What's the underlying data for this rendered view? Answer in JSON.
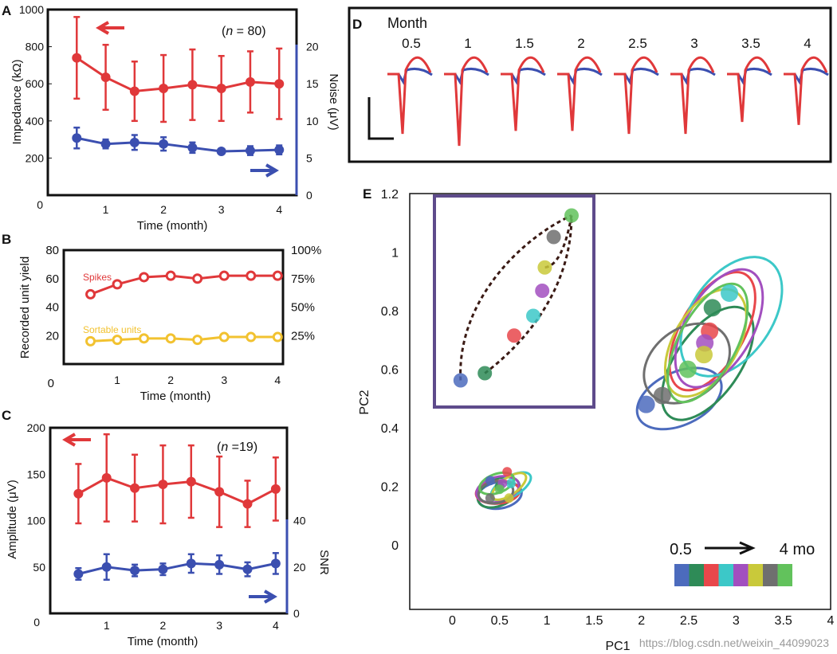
{
  "colors": {
    "red": "#e0383a",
    "blue": "#3b4fb0",
    "yellow": "#f2c230",
    "inset_border": "#5e4b8b",
    "arrow_dark": "#3a1a14",
    "palette": [
      "#4c6bbd",
      "#2e8b57",
      "#e8474b",
      "#3cc8c8",
      "#a24fbf",
      "#c9c93a",
      "#6f6f6f",
      "#62c25c"
    ]
  },
  "watermark": "https://blog.csdn.net/weixin_44099023",
  "chart_data": [
    {
      "panel": "A",
      "type": "line",
      "n_label": [
        "(",
        "n",
        " = 80)"
      ],
      "xlabel": "Time (month)",
      "ylabel": "Impedance (kΩ)",
      "y2label": "Noise (μV)",
      "xlim": [
        0,
        4.3
      ],
      "ylim": [
        0,
        1000
      ],
      "y2lim": [
        0,
        25
      ],
      "xticks": [
        0,
        1,
        2,
        3,
        4
      ],
      "yticks": [
        200,
        400,
        600,
        800,
        1000
      ],
      "y2ticks": [
        0,
        5,
        10,
        15,
        20
      ],
      "x": [
        0.5,
        1,
        1.5,
        2,
        2.5,
        3,
        3.5,
        4
      ],
      "series": [
        {
          "name": "Impedance",
          "axis": "left",
          "color": "red",
          "values": [
            740,
            635,
            560,
            575,
            595,
            575,
            610,
            600
          ],
          "err": [
            220,
            175,
            160,
            180,
            190,
            175,
            165,
            190
          ]
        },
        {
          "name": "Noise",
          "axis": "right",
          "color": "blue",
          "values": [
            7.7,
            6.9,
            7.1,
            6.9,
            6.4,
            5.9,
            6.0,
            6.1
          ],
          "err": [
            1.4,
            0.6,
            1.0,
            0.9,
            0.7,
            0.3,
            0.6,
            0.6
          ]
        }
      ]
    },
    {
      "panel": "B",
      "type": "line",
      "xlabel": "Time (month)",
      "ylabel": "Recorded unit yield",
      "xlim": [
        0,
        4.1
      ],
      "ylim": [
        0,
        80
      ],
      "xticks": [
        0,
        1,
        2,
        3,
        4
      ],
      "yticks": [
        20,
        40,
        60,
        80
      ],
      "y2ticks": [
        "25%",
        "50%",
        "75%",
        "100%"
      ],
      "x": [
        0.5,
        1,
        1.5,
        2,
        2.5,
        3,
        3.5,
        4
      ],
      "series": [
        {
          "name": "Spikes",
          "color": "red",
          "values": [
            49,
            56,
            61,
            62,
            60,
            62,
            62,
            62
          ]
        },
        {
          "name": "Sortable units",
          "color": "yellow",
          "values": [
            16,
            17,
            18,
            18,
            17,
            19,
            19,
            19
          ]
        }
      ]
    },
    {
      "panel": "C",
      "type": "line",
      "n_label": [
        "(",
        "n",
        " =19)"
      ],
      "xlabel": "Time (month)",
      "ylabel": "Amplitude (μV)",
      "y2label": "SNR",
      "xlim": [
        0,
        4.2
      ],
      "ylim": [
        0,
        200
      ],
      "y2lim": [
        0,
        80
      ],
      "xticks": [
        0,
        1,
        2,
        3,
        4
      ],
      "yticks": [
        0,
        50,
        100,
        150,
        200
      ],
      "y2ticks": [
        0,
        20,
        40
      ],
      "x": [
        0.5,
        1,
        1.5,
        2,
        2.5,
        3,
        3.5,
        4
      ],
      "series": [
        {
          "name": "Amplitude",
          "axis": "left",
          "color": "red",
          "values": [
            129,
            146,
            135,
            139,
            142,
            131,
            118,
            134
          ],
          "err": [
            32,
            47,
            36,
            42,
            39,
            38,
            25,
            34
          ]
        },
        {
          "name": "SNR",
          "axis": "right",
          "color": "blue",
          "values": [
            17,
            20,
            18.5,
            19,
            21.5,
            21,
            19,
            21.5
          ],
          "err": [
            2.5,
            5.5,
            2.5,
            2.5,
            4,
            4,
            3,
            4.5
          ]
        }
      ]
    },
    {
      "panel": "D",
      "type": "line",
      "header": "Month",
      "months": [
        "0.5",
        "1",
        "1.5",
        "2",
        "2.5",
        "3",
        "3.5",
        "4"
      ],
      "troughs": [
        -1.0,
        -1.2,
        -0.95,
        -0.95,
        -1.0,
        -1.0,
        -0.8,
        -0.85
      ]
    },
    {
      "panel": "E",
      "type": "scatter",
      "xlabel": "PC1",
      "ylabel": "PC2",
      "xlim": [
        -0.45,
        4
      ],
      "ylim": [
        -0.22,
        1.2
      ],
      "xticks": [
        0,
        0.5,
        1,
        1.5,
        2,
        2.5,
        3,
        3.5,
        4
      ],
      "xtick_labels": [
        "0",
        "0.5",
        "1",
        "1.5",
        "2",
        "2.5",
        "3",
        "3.5",
        "4"
      ],
      "yticks": [
        0,
        0.2,
        0.4,
        0.6,
        0.8,
        1,
        1.2
      ],
      "ytick_labels": [
        "0",
        "0.2",
        "0.4",
        "0.6",
        "0.8",
        "1",
        "1.2"
      ],
      "legend": {
        "start": "0.5",
        "end": "4 mo"
      },
      "cluster1_points": [
        [
          0.4,
          0.22
        ],
        [
          0.5,
          0.2
        ],
        [
          0.58,
          0.25
        ],
        [
          0.62,
          0.21
        ],
        [
          0.53,
          0.21
        ],
        [
          0.6,
          0.16
        ],
        [
          0.4,
          0.16
        ],
        [
          0.5,
          0.19
        ]
      ],
      "cluster1_ellipses": [
        [
          0.5,
          0.17,
          0.47,
          0.28,
          10
        ],
        [
          0.49,
          0.18,
          0.47,
          0.28,
          25
        ],
        [
          0.48,
          0.18,
          0.46,
          0.24,
          5
        ],
        [
          0.62,
          0.2,
          0.47,
          0.21,
          30
        ],
        [
          0.48,
          0.19,
          0.46,
          0.26,
          15
        ],
        [
          0.6,
          0.2,
          0.42,
          0.18,
          35
        ],
        [
          0.46,
          0.18,
          0.37,
          0.23,
          10
        ],
        [
          0.47,
          0.21,
          0.38,
          0.2,
          20
        ]
      ],
      "cluster2_points": [
        [
          2.05,
          0.48
        ],
        [
          2.75,
          0.81
        ],
        [
          2.72,
          0.73
        ],
        [
          2.93,
          0.86
        ],
        [
          2.67,
          0.69
        ],
        [
          2.66,
          0.65
        ],
        [
          2.22,
          0.51
        ],
        [
          2.49,
          0.6
        ]
      ],
      "cluster2_ellipses": [
        [
          2.4,
          0.5,
          0.95,
          0.56,
          25
        ],
        [
          2.7,
          0.62,
          1.38,
          0.68,
          55
        ],
        [
          2.75,
          0.73,
          1.39,
          0.67,
          60
        ],
        [
          2.95,
          0.78,
          1.42,
          0.85,
          55
        ],
        [
          2.82,
          0.74,
          1.38,
          0.71,
          60
        ],
        [
          2.68,
          0.69,
          1.25,
          0.68,
          60
        ],
        [
          2.48,
          0.62,
          1.0,
          0.73,
          38
        ],
        [
          2.7,
          0.69,
          1.38,
          0.61,
          62
        ]
      ],
      "inset_points": [
        [
          0.08,
          0.06
        ],
        [
          0.27,
          0.1
        ],
        [
          0.5,
          0.31
        ],
        [
          0.65,
          0.42
        ],
        [
          0.72,
          0.56
        ],
        [
          0.74,
          0.69
        ],
        [
          0.81,
          0.86
        ],
        [
          0.95,
          0.98
        ]
      ]
    }
  ]
}
